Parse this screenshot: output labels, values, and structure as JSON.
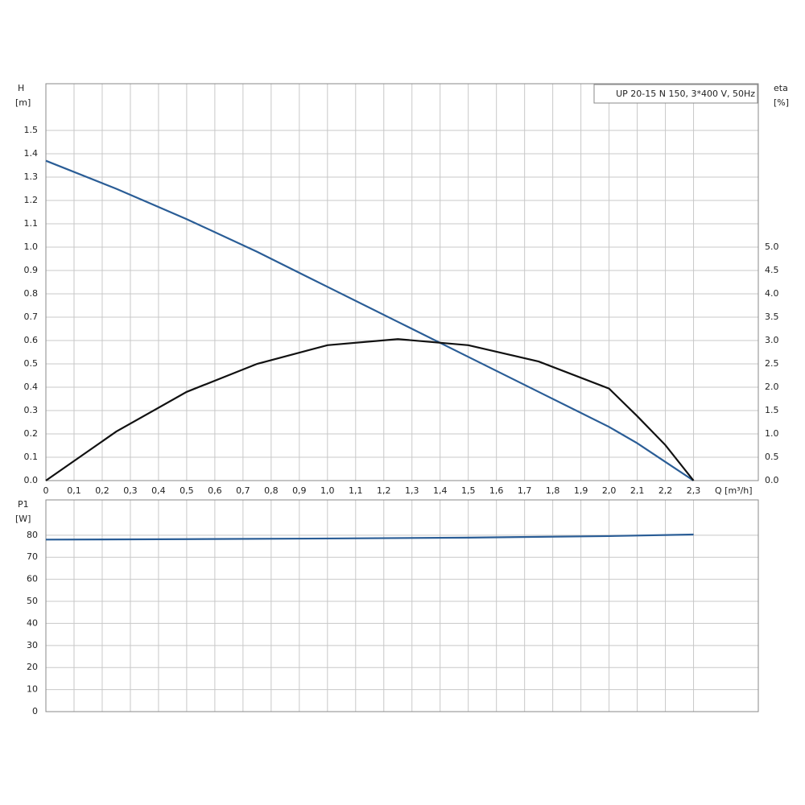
{
  "chart_data": [
    {
      "type": "line",
      "title": "UP 20-15 N 150, 3*400 V, 50Hz",
      "ylabel": "H",
      "yunit": "[m]",
      "y2label": "eta",
      "y2unit": "[%]",
      "xlabel": "Q [m³/h]",
      "x": [
        0,
        0.25,
        0.5,
        0.75,
        1.0,
        1.25,
        1.5,
        1.75,
        2.0,
        2.1,
        2.2,
        2.3
      ],
      "series": [
        {
          "color": "#2a5d96",
          "values": [
            1.37,
            1.25,
            1.12,
            0.98,
            0.83,
            0.68,
            0.53,
            0.38,
            0.23,
            0.16,
            0.08,
            0.0
          ]
        },
        {
          "color": "#111111",
          "axis": "y2",
          "values": [
            0.0,
            1.05,
            1.9,
            2.5,
            2.9,
            3.03,
            2.9,
            2.55,
            1.97,
            1.38,
            0.76,
            0.0
          ]
        }
      ],
      "xlim": [
        0,
        2.53
      ],
      "xticks": [
        0,
        {
          "value": 0.1,
          "label": "0,1"
        },
        {
          "value": 0.2,
          "label": "0,2"
        },
        {
          "value": 0.3,
          "label": "0,3"
        },
        {
          "value": 0.4,
          "label": "0,4"
        },
        {
          "value": 0.5,
          "label": "0,5"
        },
        {
          "value": 0.6,
          "label": "0,6"
        },
        {
          "value": 0.7,
          "label": "0,7"
        },
        {
          "value": 0.8,
          "label": "0,8"
        },
        {
          "value": 0.9,
          "label": "0,9"
        },
        {
          "value": 1.0,
          "label": "1,0"
        },
        {
          "value": 1.1,
          "label": "1,1"
        },
        {
          "value": 1.2,
          "label": "1,2"
        },
        {
          "value": 1.3,
          "label": "1,3"
        },
        {
          "value": 1.4,
          "label": "1,4"
        },
        {
          "value": 1.5,
          "label": "1,5"
        },
        {
          "value": 1.6,
          "label": "1,6"
        },
        {
          "value": 1.7,
          "label": "1,7"
        },
        {
          "value": 1.8,
          "label": "1,8"
        },
        {
          "value": 1.9,
          "label": "1,9"
        },
        {
          "value": 2.0,
          "label": "2,0"
        },
        {
          "value": 2.1,
          "label": "2,1"
        },
        {
          "value": 2.2,
          "label": "2,2"
        },
        {
          "value": 2.3,
          "label": "2,3"
        }
      ],
      "ylim": [
        0,
        1.7
      ],
      "yticks": [
        {
          "value": 0,
          "label": "0.0"
        },
        0.1,
        0.2,
        0.3,
        0.4,
        0.5,
        0.6,
        0.7,
        0.8,
        0.9,
        {
          "value": 1.0,
          "label": "1.0"
        },
        1.1,
        1.2,
        1.3,
        1.4,
        1.5
      ],
      "y2lim": [
        0,
        8.5
      ],
      "y2ticks": [
        {
          "value": 0,
          "label": "0.0"
        },
        0.5,
        {
          "value": 1.0,
          "label": "1.0"
        },
        1.5,
        {
          "value": 2.0,
          "label": "2.0"
        },
        2.5,
        {
          "value": 3.0,
          "label": "3.0"
        },
        3.5,
        {
          "value": 4.0,
          "label": "4.0"
        },
        4.5,
        {
          "value": 5.0,
          "label": "5.0"
        }
      ],
      "grid": true
    },
    {
      "type": "line",
      "ylabel": "P1",
      "yunit": "[W]",
      "x": [
        0,
        0.5,
        1.0,
        1.5,
        2.0,
        2.3
      ],
      "series": [
        {
          "color": "#2a5d96",
          "values": [
            78,
            78.2,
            78.5,
            78.9,
            79.6,
            80.3
          ]
        }
      ],
      "xlim": [
        0,
        2.53
      ],
      "ylim": [
        0,
        96
      ],
      "yticks": [
        0,
        10,
        20,
        30,
        40,
        50,
        60,
        70,
        80
      ],
      "grid": true
    }
  ]
}
